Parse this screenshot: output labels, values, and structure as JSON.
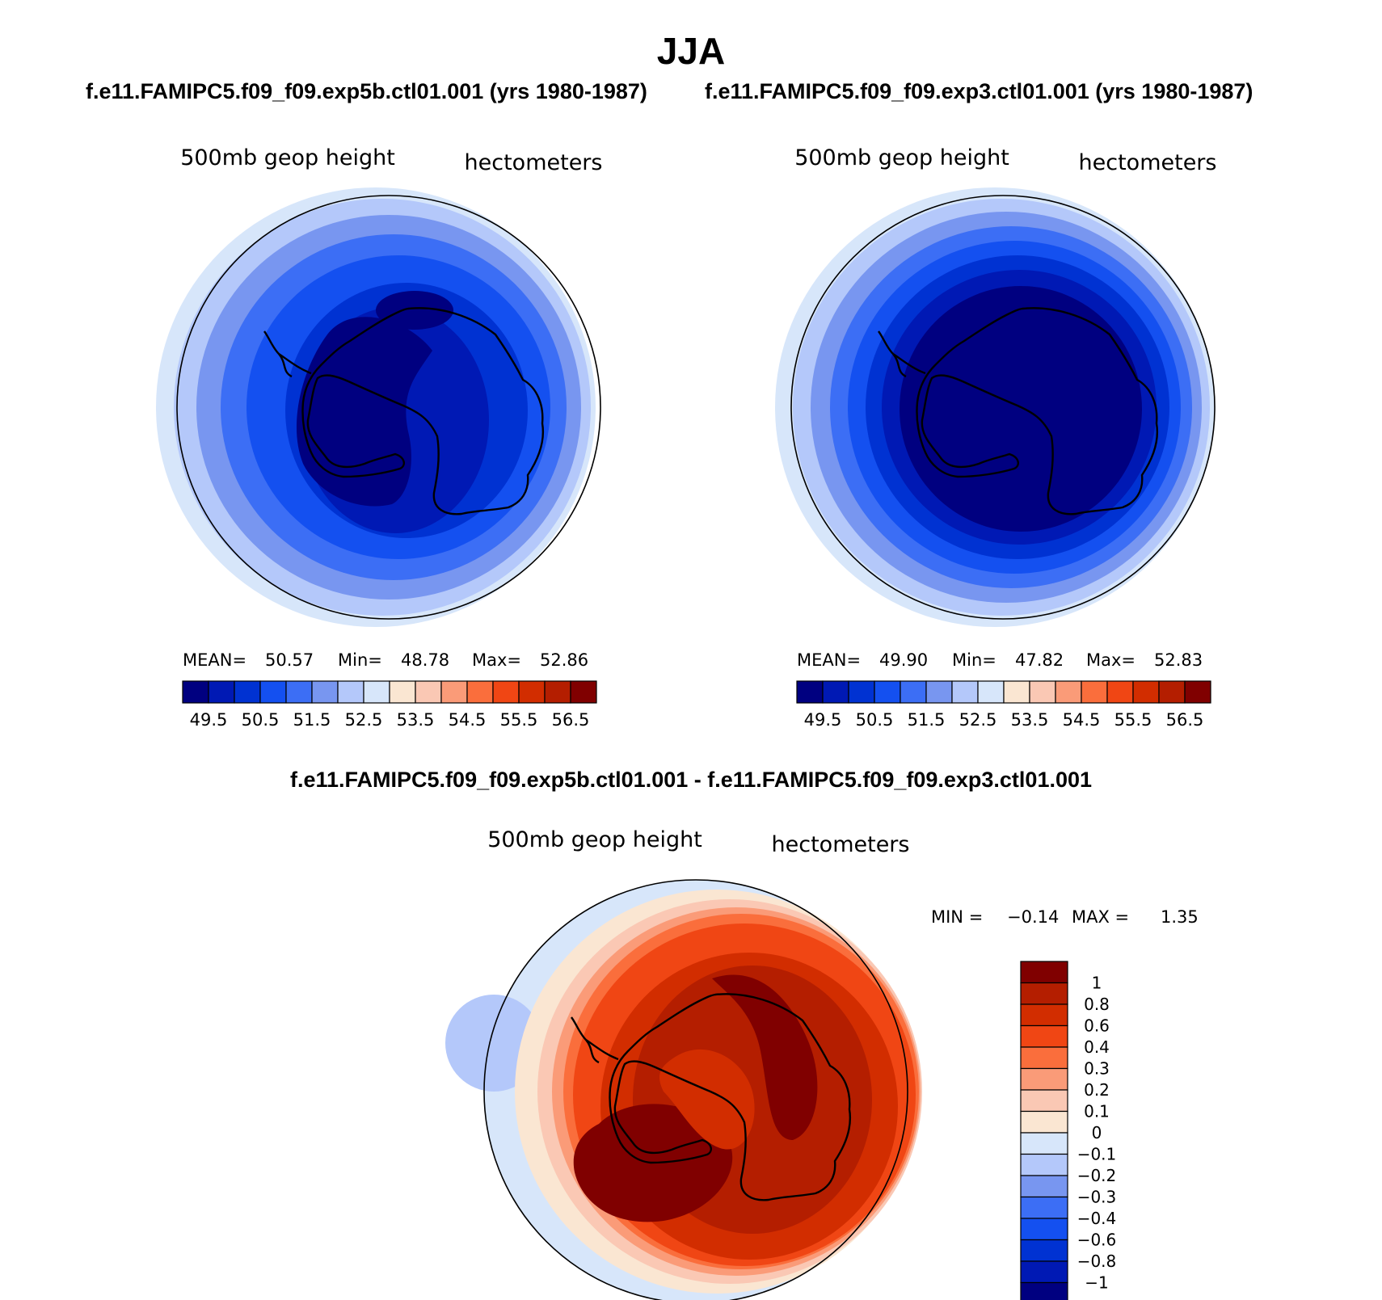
{
  "title": "JJA",
  "panels": [
    {
      "id": "exp5b",
      "run_title": "f.e11.FAMIPC5.f09_f09.exp5b.ctl01.001 (yrs 1980-1987)",
      "variable": "500mb geop height",
      "units": "hectometers",
      "stats": {
        "mean_label": "MEAN=",
        "mean": "50.57",
        "min_label": "Min=",
        "min": "48.78",
        "max_label": "Max=",
        "max": "52.86"
      }
    },
    {
      "id": "exp3",
      "run_title": "f.e11.FAMIPC5.f09_f09.exp3.ctl01.001 (yrs 1980-1987)",
      "variable": "500mb geop height",
      "units": "hectometers",
      "stats": {
        "mean_label": "MEAN=",
        "mean": "49.90",
        "min_label": "Min=",
        "min": "47.82",
        "max_label": "Max=",
        "max": "52.83"
      }
    }
  ],
  "colorbar": {
    "colors": [
      "#000080",
      "#0019b4",
      "#0032d2",
      "#1450f0",
      "#3c6ef5",
      "#7896f0",
      "#b4c8fa",
      "#d7e6fa",
      "#fae6d2",
      "#fac8b4",
      "#fa9b78",
      "#fa6e3c",
      "#f04614",
      "#d22d00",
      "#b41e00",
      "#800000"
    ],
    "labels": [
      "49.5",
      "50.5",
      "51.5",
      "52.5",
      "53.5",
      "54.5",
      "55.5",
      "56.5"
    ]
  },
  "difference": {
    "title": "f.e11.FAMIPC5.f09_f09.exp5b.ctl01.001 - f.e11.FAMIPC5.f09_f09.exp3.ctl01.001",
    "variable": "500mb geop height",
    "units": "hectometers",
    "min_label": "MIN =",
    "min": "−0.14",
    "max_label": "MAX =",
    "max": "1.35",
    "colorbar": {
      "colors": [
        "#800000",
        "#b41e00",
        "#d22d00",
        "#f04614",
        "#fa6e3c",
        "#fa9b78",
        "#fac8b4",
        "#fae6d2",
        "#d7e6fa",
        "#b4c8fa",
        "#7896f0",
        "#3c6ef5",
        "#1450f0",
        "#0032d2",
        "#0019b4",
        "#000080"
      ],
      "labels": [
        "1",
        "0.8",
        "0.6",
        "0.4",
        "0.3",
        "0.2",
        "0.1",
        "0",
        "−0.1",
        "−0.2",
        "−0.3",
        "−0.4",
        "−0.6",
        "−0.8",
        "−1"
      ]
    }
  }
}
